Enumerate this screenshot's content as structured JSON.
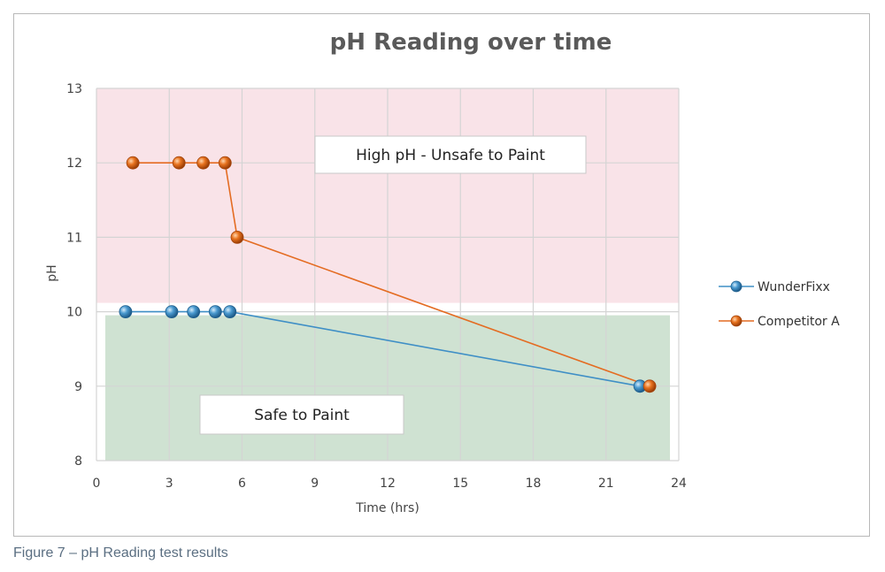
{
  "caption": "Figure 7 – pH Reading test results",
  "chart_data": {
    "type": "line",
    "title": "pH Reading over time",
    "xlabel": "Time (hrs)",
    "ylabel": "pH",
    "xlim": [
      0,
      24
    ],
    "ylim": [
      8,
      13
    ],
    "xticks": [
      0,
      3,
      6,
      9,
      12,
      15,
      18,
      21,
      24
    ],
    "yticks": [
      8,
      9,
      10,
      11,
      12,
      13
    ],
    "grid": true,
    "legend_position": "right",
    "zones": [
      {
        "label": "High pH - Unsafe to Paint",
        "y_from": 10,
        "y_to": 13,
        "color": "#f9e3e8"
      },
      {
        "label": "Safe to Paint",
        "y_from": 8,
        "y_to": 10,
        "color": "#cfe2d2"
      }
    ],
    "series": [
      {
        "name": "WunderFixx",
        "color": "#3f8fc6",
        "x": [
          1.2,
          3.1,
          4.0,
          4.9,
          5.5,
          22.4
        ],
        "y": [
          10,
          10,
          10,
          10,
          10,
          9
        ]
      },
      {
        "name": "Competitor A",
        "color": "#e46c22",
        "x": [
          1.5,
          3.4,
          4.4,
          5.3,
          5.8,
          22.8
        ],
        "y": [
          12,
          12,
          12,
          12,
          11,
          9
        ]
      }
    ]
  }
}
